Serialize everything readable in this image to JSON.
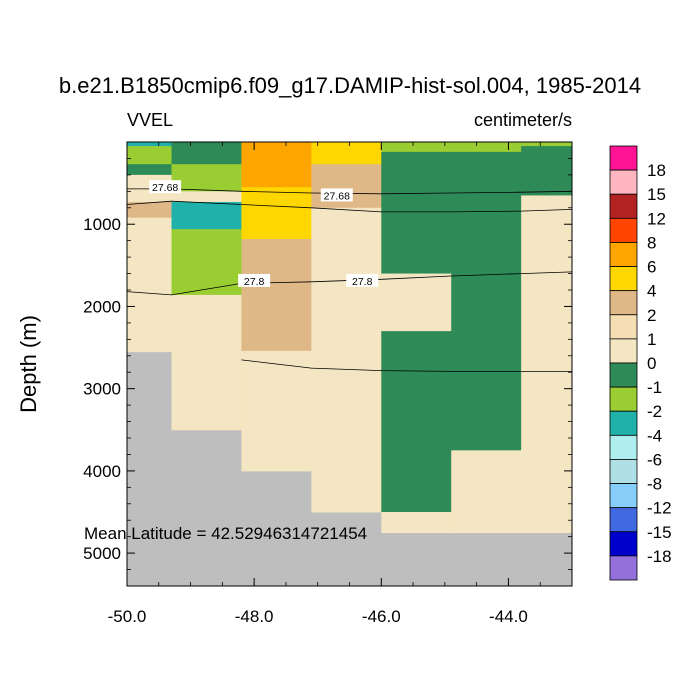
{
  "chart_data": {
    "type": "heatmap",
    "title": "b.e21.B1850cmip6.f09_g17.DAMIP-hist-sol.004, 1985-2014",
    "left_label": "VVEL",
    "right_label": "centimeter/s",
    "ylabel": "Depth (m)",
    "xlabel": "",
    "xlim": [
      -50.0,
      -43.0
    ],
    "ylim": [
      5400,
      0
    ],
    "x_ticks": [
      -50.0,
      -48.0,
      -46.0,
      -44.0
    ],
    "x_tick_labels": [
      "-50.0",
      "-48.0",
      "-46.0",
      "-44.0"
    ],
    "y_ticks": [
      1000,
      2000,
      3000,
      4000,
      5000
    ],
    "y_tick_labels": [
      "1000",
      "2000",
      "3000",
      "4000",
      "5000"
    ],
    "annotation": "Mean Latitude = 42.52946314721454",
    "missing_color": "#bebebe",
    "colorbar": {
      "labels": [
        "18",
        "15",
        "12",
        "8",
        "6",
        "4",
        "2",
        "1",
        "0",
        "-1",
        "-2",
        "-4",
        "-6",
        "-8",
        "-12",
        "-15",
        "-18"
      ],
      "colors": [
        "#ff1493",
        "#ffb6c1",
        "#b22222",
        "#ff4500",
        "#ffa500",
        "#ffd700",
        "#deb887",
        "#f5deb3",
        "#f5e6c3",
        "#2e8b57",
        "#9acd32",
        "#20b2aa",
        "#afeeee",
        "#b0e0e6",
        "#87cefa",
        "#4169e1",
        "#0000cd",
        "#9370db"
      ]
    },
    "cells": [
      {
        "x0": -50.0,
        "x1": -49.3,
        "y0": 0,
        "y1": 50,
        "color": "#20b2aa"
      },
      {
        "x0": -50.0,
        "x1": -49.3,
        "y0": 50,
        "y1": 270,
        "color": "#9acd32"
      },
      {
        "x0": -50.0,
        "x1": -49.3,
        "y0": 270,
        "y1": 400,
        "color": "#2e8b57"
      },
      {
        "x0": -50.0,
        "x1": -49.3,
        "y0": 400,
        "y1": 730,
        "color": "#f5e6c3"
      },
      {
        "x0": -50.0,
        "x1": -49.3,
        "y0": 730,
        "y1": 920,
        "color": "#deb887"
      },
      {
        "x0": -50.0,
        "x1": -49.3,
        "y0": 920,
        "y1": 2550,
        "color": "#f5e6c3"
      },
      {
        "x0": -49.3,
        "x1": -48.2,
        "y0": 0,
        "y1": 270,
        "color": "#2e8b57"
      },
      {
        "x0": -49.3,
        "x1": -48.2,
        "y0": 270,
        "y1": 600,
        "color": "#9acd32"
      },
      {
        "x0": -49.3,
        "x1": -48.2,
        "y0": 600,
        "y1": 730,
        "color": "#f5e6c3"
      },
      {
        "x0": -49.3,
        "x1": -48.2,
        "y0": 730,
        "y1": 1060,
        "color": "#20b2aa"
      },
      {
        "x0": -49.3,
        "x1": -48.2,
        "y0": 1060,
        "y1": 1860,
        "color": "#9acd32"
      },
      {
        "x0": -49.3,
        "x1": -48.2,
        "y0": 1860,
        "y1": 3500,
        "color": "#f5e6c3"
      },
      {
        "x0": -48.2,
        "x1": -47.1,
        "y0": 0,
        "y1": 550,
        "color": "#ffa500"
      },
      {
        "x0": -48.2,
        "x1": -47.1,
        "y0": 550,
        "y1": 1180,
        "color": "#ffd700"
      },
      {
        "x0": -48.2,
        "x1": -47.1,
        "y0": 1180,
        "y1": 2540,
        "color": "#deb887"
      },
      {
        "x0": -48.2,
        "x1": -47.1,
        "y0": 2540,
        "y1": 4000,
        "color": "#f5e6c3"
      },
      {
        "x0": -47.1,
        "x1": -46.0,
        "y0": 0,
        "y1": 270,
        "color": "#ffd700"
      },
      {
        "x0": -47.1,
        "x1": -46.0,
        "y0": 270,
        "y1": 800,
        "color": "#deb887"
      },
      {
        "x0": -47.1,
        "x1": -46.0,
        "y0": 800,
        "y1": 4500,
        "color": "#f5e6c3"
      },
      {
        "x0": -46.0,
        "x1": -44.9,
        "y0": 0,
        "y1": 120,
        "color": "#9acd32"
      },
      {
        "x0": -46.0,
        "x1": -44.9,
        "y0": 120,
        "y1": 1600,
        "color": "#2e8b57"
      },
      {
        "x0": -46.0,
        "x1": -44.9,
        "y0": 1600,
        "y1": 2300,
        "color": "#f5e6c3"
      },
      {
        "x0": -46.0,
        "x1": -44.9,
        "y0": 2300,
        "y1": 4500,
        "color": "#2e8b57"
      },
      {
        "x0": -46.0,
        "x1": -44.9,
        "y0": 4500,
        "y1": 4750,
        "color": "#f5e6c3"
      },
      {
        "x0": -44.9,
        "x1": -43.8,
        "y0": 0,
        "y1": 120,
        "color": "#9acd32"
      },
      {
        "x0": -44.9,
        "x1": -43.8,
        "y0": 120,
        "y1": 3750,
        "color": "#2e8b57"
      },
      {
        "x0": -44.9,
        "x1": -43.8,
        "y0": 3750,
        "y1": 4750,
        "color": "#f5e6c3"
      },
      {
        "x0": -43.8,
        "x1": -43.0,
        "y0": 0,
        "y1": 50,
        "color": "#9acd32"
      },
      {
        "x0": -43.8,
        "x1": -43.0,
        "y0": 50,
        "y1": 650,
        "color": "#2e8b57"
      },
      {
        "x0": -43.8,
        "x1": -43.0,
        "y0": 650,
        "y1": 4750,
        "color": "#f5e6c3"
      }
    ],
    "contours": [
      {
        "label": "27.68",
        "points": [
          [
            -50.0,
            570
          ],
          [
            -49.3,
            570
          ],
          [
            -48.2,
            600
          ],
          [
            -47.1,
            620
          ],
          [
            -46.0,
            630
          ],
          [
            -44.9,
            620
          ],
          [
            -43.8,
            610
          ],
          [
            -43.0,
            600
          ]
        ],
        "label_at": [
          [
            -49.4,
            550
          ],
          [
            -46.7,
            650
          ]
        ]
      },
      {
        "label": "27.8",
        "points": [
          [
            -50.0,
            1820
          ],
          [
            -49.3,
            1860
          ],
          [
            -48.2,
            1720
          ],
          [
            -47.1,
            1700
          ],
          [
            -46.0,
            1670
          ],
          [
            -44.9,
            1630
          ],
          [
            -43.8,
            1600
          ],
          [
            -43.0,
            1580
          ]
        ],
        "label_at": [
          [
            -48.0,
            1690
          ],
          [
            -46.3,
            1690
          ]
        ]
      },
      {
        "label": "",
        "points": [
          [
            -50.0,
            760
          ],
          [
            -49.3,
            720
          ],
          [
            -48.2,
            760
          ],
          [
            -47.1,
            800
          ],
          [
            -46.0,
            850
          ],
          [
            -44.9,
            850
          ],
          [
            -43.8,
            840
          ],
          [
            -43.0,
            820
          ]
        ],
        "label_at": []
      },
      {
        "label": "",
        "points": [
          [
            -48.2,
            2650
          ],
          [
            -47.1,
            2750
          ],
          [
            -46.0,
            2780
          ],
          [
            -44.9,
            2790
          ],
          [
            -43.8,
            2790
          ],
          [
            -43.0,
            2790
          ]
        ],
        "label_at": []
      }
    ]
  }
}
